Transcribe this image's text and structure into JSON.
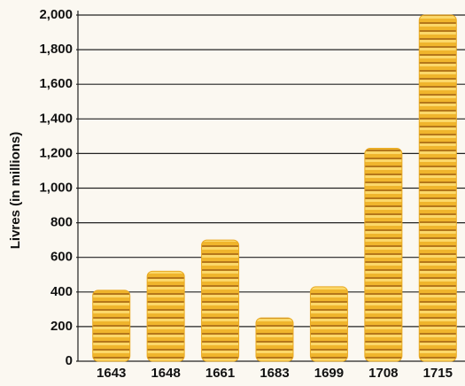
{
  "chart_data": {
    "type": "bar",
    "y_label": "Livres (in millions)",
    "categories": [
      "1643",
      "1648",
      "1661",
      "1683",
      "1699",
      "1708",
      "1715"
    ],
    "values": [
      410,
      520,
      700,
      250,
      430,
      1230,
      2000
    ],
    "color": "#e8a923",
    "ylim": [
      0,
      2000
    ],
    "yticks": [
      0,
      200,
      400,
      600,
      800,
      {
        "value": 1000,
        "label": "1,000"
      },
      {
        "value": 1200,
        "label": "1,200"
      },
      {
        "value": 1400,
        "label": "1,400"
      },
      {
        "value": 1600,
        "label": "1,600"
      },
      {
        "value": 1800,
        "label": "1,800"
      },
      {
        "value": 2000,
        "label": "2,000"
      }
    ],
    "grid": true
  }
}
